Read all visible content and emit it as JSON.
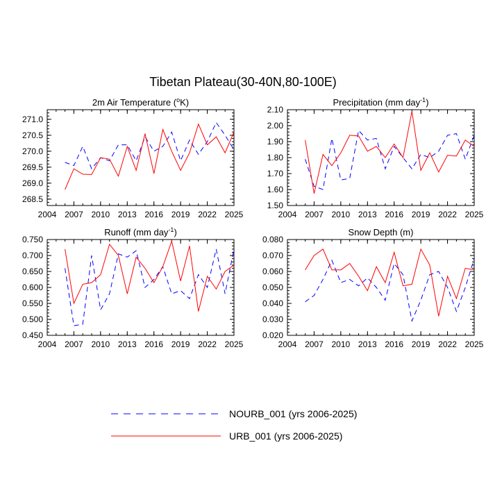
{
  "figure": {
    "title": "Tibetan Plateau(30-40N,80-100E)"
  },
  "legend": {
    "placement": "bottom-center",
    "entries": [
      {
        "series": "NOURB_001",
        "label": "NOURB_001 (yrs 2006-2025)",
        "color": "#0000ff",
        "style": "dashed"
      },
      {
        "series": "URB_001",
        "label": "URB_001 (yrs 2006-2025)",
        "color": "#ff0000",
        "style": "solid"
      }
    ]
  },
  "chart_data": [
    {
      "type": "line",
      "title_main": "2m Air Temperature (",
      "title_sup": "o",
      "title_tail": "K)",
      "x": [
        2006,
        2007,
        2008,
        2009,
        2010,
        2011,
        2012,
        2013,
        2014,
        2015,
        2016,
        2017,
        2018,
        2019,
        2020,
        2021,
        2022,
        2023,
        2024,
        2025
      ],
      "xlim": [
        2004,
        2025
      ],
      "xticks": [
        "2004",
        "2007",
        "2010",
        "2013",
        "2016",
        "2019",
        "2022",
        "2025"
      ],
      "ylim": [
        268.3,
        271.3
      ],
      "yticks": [
        "268.5",
        "269.0",
        "269.5",
        "270.0",
        "270.5",
        "271.0"
      ],
      "series": [
        {
          "name": "NOURB_001",
          "color": "#0000ff",
          "style": "dashed",
          "values": [
            269.65,
            269.55,
            270.15,
            269.45,
            269.8,
            269.7,
            270.2,
            270.2,
            269.7,
            270.45,
            270.0,
            270.15,
            270.6,
            269.7,
            270.35,
            269.9,
            270.3,
            270.9,
            270.5,
            270.05
          ]
        },
        {
          "name": "URB_001",
          "color": "#ff0000",
          "style": "solid",
          "values": [
            268.8,
            269.45,
            269.28,
            269.27,
            269.8,
            269.75,
            269.22,
            270.15,
            269.4,
            270.55,
            269.3,
            270.68,
            270.0,
            269.4,
            269.95,
            270.85,
            270.2,
            270.45,
            269.95,
            270.6
          ]
        }
      ]
    },
    {
      "type": "line",
      "title_main": "Precipitation (mm day",
      "title_sup": "-1",
      "title_tail": ")",
      "x": [
        2006,
        2007,
        2008,
        2009,
        2010,
        2011,
        2012,
        2013,
        2014,
        2015,
        2016,
        2017,
        2018,
        2019,
        2020,
        2021,
        2022,
        2023,
        2024,
        2025
      ],
      "xlim": [
        2004,
        2025
      ],
      "xticks": [
        "2004",
        "2007",
        "2010",
        "2013",
        "2016",
        "2019",
        "2022",
        "2025"
      ],
      "ylim": [
        1.5,
        2.1
      ],
      "yticks": [
        "1.50",
        "1.60",
        "1.70",
        "1.80",
        "1.90",
        "2.00",
        "2.10"
      ],
      "series": [
        {
          "name": "NOURB_001",
          "color": "#0000ff",
          "style": "dashed",
          "values": [
            1.79,
            1.62,
            1.6,
            1.92,
            1.66,
            1.67,
            1.97,
            1.91,
            1.92,
            1.73,
            1.87,
            1.8,
            1.73,
            1.82,
            1.8,
            1.84,
            1.94,
            1.95,
            1.79,
            1.94
          ]
        },
        {
          "name": "URB_001",
          "color": "#ff0000",
          "style": "solid",
          "values": [
            1.91,
            1.575,
            1.82,
            1.75,
            1.83,
            1.94,
            1.935,
            1.84,
            1.87,
            1.8,
            1.885,
            1.8,
            2.09,
            1.72,
            1.83,
            1.71,
            1.815,
            1.81,
            1.91,
            1.87
          ]
        }
      ]
    },
    {
      "type": "line",
      "title_main": "Runoff (mm day",
      "title_sup": "-1",
      "title_tail": ")",
      "x": [
        2006,
        2007,
        2008,
        2009,
        2010,
        2011,
        2012,
        2013,
        2014,
        2015,
        2016,
        2017,
        2018,
        2019,
        2020,
        2021,
        2022,
        2023,
        2024,
        2025
      ],
      "xlim": [
        2004,
        2025
      ],
      "xticks": [
        "2004",
        "2007",
        "2010",
        "2013",
        "2016",
        "2019",
        "2022",
        "2025"
      ],
      "ylim": [
        0.45,
        0.75
      ],
      "yticks": [
        "0.450",
        "0.500",
        "0.550",
        "0.600",
        "0.650",
        "0.700",
        "0.750"
      ],
      "series": [
        {
          "name": "NOURB_001",
          "color": "#0000ff",
          "style": "dashed",
          "values": [
            0.66,
            0.48,
            0.485,
            0.7,
            0.53,
            0.58,
            0.705,
            0.695,
            0.715,
            0.6,
            0.625,
            0.665,
            0.58,
            0.59,
            0.565,
            0.64,
            0.6,
            0.72,
            0.58,
            0.72
          ]
        },
        {
          "name": "URB_001",
          "color": "#ff0000",
          "style": "solid",
          "values": [
            0.72,
            0.55,
            0.61,
            0.615,
            0.64,
            0.735,
            0.7,
            0.58,
            0.695,
            0.66,
            0.615,
            0.665,
            0.745,
            0.62,
            0.73,
            0.525,
            0.635,
            0.595,
            0.65,
            0.67
          ]
        }
      ]
    },
    {
      "type": "line",
      "title_main": "Snow Depth (m)",
      "title_sup": "",
      "title_tail": "",
      "x": [
        2006,
        2007,
        2008,
        2009,
        2010,
        2011,
        2012,
        2013,
        2014,
        2015,
        2016,
        2017,
        2018,
        2019,
        2020,
        2021,
        2022,
        2023,
        2024,
        2025
      ],
      "xlim": [
        2004,
        2025
      ],
      "xticks": [
        "2004",
        "2007",
        "2010",
        "2013",
        "2016",
        "2019",
        "2022",
        "2025"
      ],
      "ylim": [
        0.02,
        0.08
      ],
      "yticks": [
        "0.020",
        "0.030",
        "0.040",
        "0.050",
        "0.060",
        "0.070",
        "0.080"
      ],
      "series": [
        {
          "name": "NOURB_001",
          "color": "#0000ff",
          "style": "dashed",
          "values": [
            0.041,
            0.045,
            0.055,
            0.067,
            0.053,
            0.055,
            0.051,
            0.056,
            0.05,
            0.042,
            0.065,
            0.058,
            0.029,
            0.042,
            0.058,
            0.06,
            0.05,
            0.035,
            0.05,
            0.068
          ]
        },
        {
          "name": "URB_001",
          "color": "#ff0000",
          "style": "solid",
          "values": [
            0.061,
            0.07,
            0.074,
            0.061,
            0.061,
            0.065,
            0.057,
            0.048,
            0.063,
            0.053,
            0.072,
            0.051,
            0.052,
            0.074,
            0.064,
            0.032,
            0.057,
            0.043,
            0.062,
            0.061
          ]
        }
      ]
    }
  ]
}
